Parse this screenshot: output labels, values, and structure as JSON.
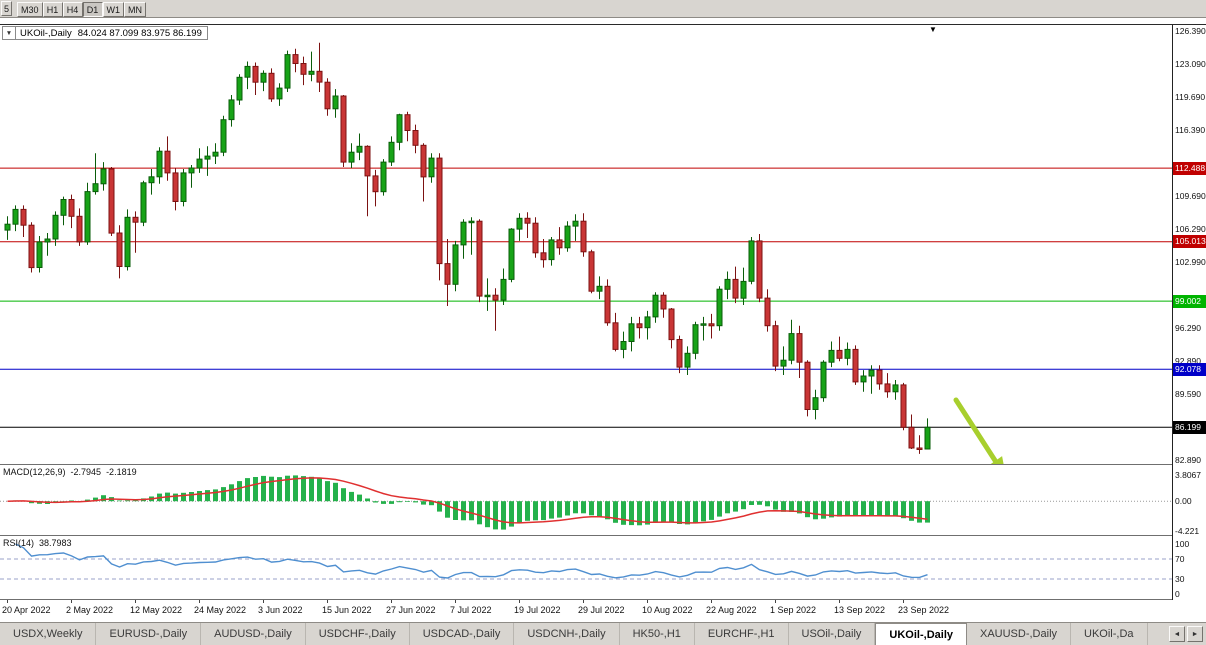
{
  "window": {
    "timeframe_toolbar": {
      "partial_button": "5",
      "buttons": [
        "M30",
        "H1",
        "H4",
        "D1",
        "W1",
        "MN"
      ],
      "active": "D1"
    }
  },
  "chart": {
    "dropdown_arrow": "▼",
    "title_symbol": "UKOil-,Daily",
    "title_ohlc": "84.024 87.099 83.975 86.199",
    "end_marker": "▼"
  },
  "chart_data": {
    "type": "candlestick",
    "symbol": "UKOil-",
    "timeframe": "Daily",
    "current_ohlc": {
      "open": "84.024",
      "high": "87.099",
      "low": "83.975",
      "close": "86.199"
    },
    "y_axis": {
      "min": 82.89,
      "max": 126.39,
      "ticks": [
        "126.390",
        "123.090",
        "119.690",
        "116.390",
        "109.690",
        "106.290",
        "102.990",
        "96.290",
        "92.890",
        "89.590",
        "82.890"
      ]
    },
    "x_axis": {
      "candles_per_label": 8,
      "labels": [
        "20 Apr 2022",
        "2 May 2022",
        "12 May 2022",
        "24 May 2022",
        "3 Jun 2022",
        "15 Jun 2022",
        "27 Jun 2022",
        "7 Jul 2022",
        "19 Jul 2022",
        "29 Jul 2022",
        "10 Aug 2022",
        "22 Aug 2022",
        "1 Sep 2022",
        "13 Sep 2022",
        "23 Sep 2022"
      ]
    },
    "levels": [
      {
        "price": 112.488,
        "label": "112.488",
        "color_key": "level_red"
      },
      {
        "price": 105.013,
        "label": "105.013",
        "color_key": "level_red"
      },
      {
        "price": 99.002,
        "label": "99.002",
        "color_key": "level_green"
      },
      {
        "price": 92.078,
        "label": "92.078",
        "color_key": "level_blue"
      },
      {
        "price": 86.199,
        "label": "86.199",
        "color_key": "level_black"
      }
    ],
    "candles": [
      [
        106.2,
        107.6,
        105.2,
        106.8
      ],
      [
        106.8,
        108.7,
        106.1,
        108.3
      ],
      [
        108.3,
        108.7,
        105.5,
        106.7
      ],
      [
        106.7,
        107.0,
        101.9,
        102.4
      ],
      [
        102.4,
        105.6,
        101.9,
        105.0
      ],
      [
        105.0,
        105.9,
        103.6,
        105.3
      ],
      [
        105.3,
        108.1,
        104.6,
        107.7
      ],
      [
        107.7,
        109.6,
        106.7,
        109.3
      ],
      [
        109.3,
        109.8,
        106.4,
        107.6
      ],
      [
        107.6,
        108.4,
        104.6,
        105.0
      ],
      [
        105.0,
        111.0,
        104.7,
        110.1
      ],
      [
        110.1,
        114.0,
        109.8,
        110.9
      ],
      [
        110.9,
        113.1,
        110.2,
        112.4
      ],
      [
        112.4,
        112.6,
        105.6,
        105.9
      ],
      [
        105.9,
        106.7,
        101.3,
        102.5
      ],
      [
        102.5,
        108.3,
        102.1,
        107.5
      ],
      [
        107.5,
        108.1,
        103.9,
        107.0
      ],
      [
        107.0,
        111.2,
        106.6,
        111.0
      ],
      [
        111.0,
        112.4,
        109.8,
        111.6
      ],
      [
        111.6,
        114.6,
        110.9,
        114.2
      ],
      [
        114.2,
        115.7,
        111.2,
        112.0
      ],
      [
        112.0,
        112.5,
        108.2,
        109.1
      ],
      [
        109.1,
        112.4,
        108.6,
        112.0
      ],
      [
        112.0,
        112.8,
        110.5,
        112.5
      ],
      [
        112.5,
        114.5,
        112.0,
        113.4
      ],
      [
        113.4,
        114.7,
        111.7,
        113.7
      ],
      [
        113.7,
        115.0,
        112.9,
        114.1
      ],
      [
        114.1,
        117.8,
        113.7,
        117.4
      ],
      [
        117.4,
        119.9,
        116.7,
        119.4
      ],
      [
        119.4,
        122.0,
        118.9,
        121.7
      ],
      [
        121.7,
        123.3,
        120.5,
        122.8
      ],
      [
        122.8,
        123.2,
        119.9,
        121.2
      ],
      [
        121.2,
        122.4,
        120.3,
        122.1
      ],
      [
        122.1,
        122.6,
        119.2,
        119.5
      ],
      [
        119.5,
        121.1,
        118.8,
        120.6
      ],
      [
        120.6,
        124.4,
        120.2,
        124.0
      ],
      [
        124.0,
        124.6,
        122.2,
        123.1
      ],
      [
        123.1,
        123.8,
        120.9,
        122.0
      ],
      [
        122.0,
        124.3,
        121.3,
        122.3
      ],
      [
        122.3,
        125.2,
        120.2,
        121.2
      ],
      [
        121.2,
        121.6,
        117.8,
        118.5
      ],
      [
        118.5,
        120.5,
        117.6,
        119.8
      ],
      [
        119.8,
        119.9,
        112.6,
        113.1
      ],
      [
        113.1,
        115.0,
        112.5,
        114.1
      ],
      [
        114.1,
        116.0,
        113.3,
        114.7
      ],
      [
        114.7,
        114.8,
        107.6,
        111.7
      ],
      [
        111.7,
        112.3,
        108.6,
        110.1
      ],
      [
        110.1,
        113.4,
        109.7,
        113.1
      ],
      [
        113.1,
        115.7,
        112.7,
        115.1
      ],
      [
        115.1,
        118.0,
        114.3,
        117.9
      ],
      [
        117.9,
        118.2,
        115.2,
        116.3
      ],
      [
        116.3,
        116.9,
        114.0,
        114.8
      ],
      [
        114.8,
        115.0,
        109.1,
        111.6
      ],
      [
        111.6,
        114.0,
        111.0,
        113.5
      ],
      [
        113.5,
        114.0,
        101.1,
        102.8
      ],
      [
        102.8,
        105.3,
        98.5,
        100.7
      ],
      [
        100.7,
        105.1,
        100.0,
        104.7
      ],
      [
        104.7,
        107.3,
        103.3,
        107.0
      ],
      [
        107.0,
        107.5,
        103.7,
        107.1
      ],
      [
        107.1,
        107.3,
        98.9,
        99.5
      ],
      [
        99.5,
        101.3,
        98.0,
        99.6
      ],
      [
        99.6,
        100.3,
        96.0,
        99.1
      ],
      [
        99.1,
        102.3,
        98.6,
        101.2
      ],
      [
        101.2,
        106.4,
        100.9,
        106.3
      ],
      [
        106.3,
        107.9,
        105.1,
        107.4
      ],
      [
        107.4,
        108.0,
        105.4,
        106.9
      ],
      [
        106.9,
        107.5,
        103.4,
        103.9
      ],
      [
        103.9,
        105.3,
        102.4,
        103.2
      ],
      [
        103.2,
        105.5,
        102.6,
        105.2
      ],
      [
        105.2,
        106.5,
        103.7,
        104.4
      ],
      [
        104.4,
        107.1,
        104.0,
        106.6
      ],
      [
        106.6,
        107.8,
        105.1,
        107.1
      ],
      [
        107.1,
        107.9,
        103.5,
        104.0
      ],
      [
        104.0,
        104.2,
        99.8,
        100.0
      ],
      [
        100.0,
        101.5,
        99.2,
        100.5
      ],
      [
        100.5,
        101.2,
        96.5,
        96.8
      ],
      [
        96.8,
        97.8,
        93.9,
        94.1
      ],
      [
        94.1,
        95.9,
        93.2,
        94.9
      ],
      [
        94.9,
        97.4,
        93.9,
        96.7
      ],
      [
        96.7,
        97.4,
        95.2,
        96.3
      ],
      [
        96.3,
        98.0,
        95.1,
        97.4
      ],
      [
        97.4,
        99.9,
        96.8,
        99.6
      ],
      [
        99.6,
        99.9,
        97.3,
        98.2
      ],
      [
        98.2,
        98.3,
        94.2,
        95.1
      ],
      [
        95.1,
        95.5,
        91.7,
        92.3
      ],
      [
        92.3,
        94.4,
        91.5,
        93.7
      ],
      [
        93.7,
        96.9,
        93.1,
        96.6
      ],
      [
        96.6,
        97.4,
        95.0,
        96.7
      ],
      [
        96.7,
        97.7,
        95.2,
        96.5
      ],
      [
        96.5,
        100.5,
        96.0,
        100.2
      ],
      [
        100.2,
        102.0,
        99.2,
        101.2
      ],
      [
        101.2,
        102.5,
        98.8,
        99.3
      ],
      [
        99.3,
        102.4,
        98.6,
        101.0
      ],
      [
        101.0,
        105.5,
        100.7,
        105.1
      ],
      [
        105.1,
        105.8,
        98.9,
        99.3
      ],
      [
        99.3,
        100.2,
        95.9,
        96.5
      ],
      [
        96.5,
        97.0,
        91.9,
        92.4
      ],
      [
        92.4,
        94.4,
        91.5,
        93.0
      ],
      [
        93.0,
        97.1,
        92.6,
        95.7
      ],
      [
        95.7,
        96.5,
        91.2,
        92.8
      ],
      [
        92.8,
        93.0,
        87.3,
        88.0
      ],
      [
        88.0,
        90.0,
        87.0,
        89.2
      ],
      [
        89.2,
        93.0,
        88.8,
        92.8
      ],
      [
        92.8,
        94.9,
        92.3,
        94.0
      ],
      [
        94.0,
        95.4,
        92.9,
        93.2
      ],
      [
        93.2,
        94.8,
        92.5,
        94.1
      ],
      [
        94.1,
        94.5,
        90.5,
        90.8
      ],
      [
        90.8,
        92.0,
        89.8,
        91.4
      ],
      [
        91.4,
        92.5,
        89.6,
        92.0
      ],
      [
        92.0,
        92.5,
        90.0,
        90.6
      ],
      [
        90.6,
        91.7,
        89.2,
        89.8
      ],
      [
        89.8,
        91.0,
        89.0,
        90.5
      ],
      [
        90.5,
        90.7,
        85.9,
        86.2
      ],
      [
        86.2,
        87.5,
        84.0,
        84.1
      ],
      [
        84.1,
        85.4,
        83.5,
        84.0
      ],
      [
        84.0,
        87.1,
        83.975,
        86.2
      ]
    ],
    "indicators": {
      "macd": {
        "name": "MACD(12,26,9)",
        "value_main": "-2.7945",
        "value_signal": "-2.1819",
        "params": [
          12,
          26,
          9
        ],
        "scale": [
          "3.8067",
          "0.00",
          "-4.221"
        ]
      },
      "rsi": {
        "name": "RSI(14)",
        "value": "38.7983",
        "period": 14,
        "scale": [
          "100",
          "70",
          "30",
          "0"
        ],
        "guides": [
          70,
          30
        ]
      }
    },
    "annotations": [
      {
        "type": "arrow",
        "direction": "down-right"
      }
    ]
  },
  "tabs": {
    "items": [
      "USDX,Weekly",
      "EURUSD-,Daily",
      "AUDUSD-,Daily",
      "USDCHF-,Daily",
      "USDCAD-,Daily",
      "USDCNH-,Daily",
      "HK50-,H1",
      "EURCHF-,H1",
      "USOil-,Daily",
      "UKOil-,Daily",
      "XAUUSD-,Daily",
      "UKOil-,Da"
    ],
    "active_index": 9,
    "scroll_left": "◄",
    "scroll_right": "►"
  },
  "colors": {
    "bull": "#17a317",
    "bull_border": "#0a5c0a",
    "bear": "#c93535",
    "bear_border": "#7c1212",
    "macd_histogram": "#24b14b",
    "macd_signal": "#e03030",
    "rsi_line": "#4f8fd0",
    "rsi_guide": "#9aa0c8",
    "level_red": "#c00000",
    "level_green": "#00b400",
    "level_blue": "#0000c8",
    "level_black": "#000000",
    "arrow": "#a8cf2d"
  }
}
